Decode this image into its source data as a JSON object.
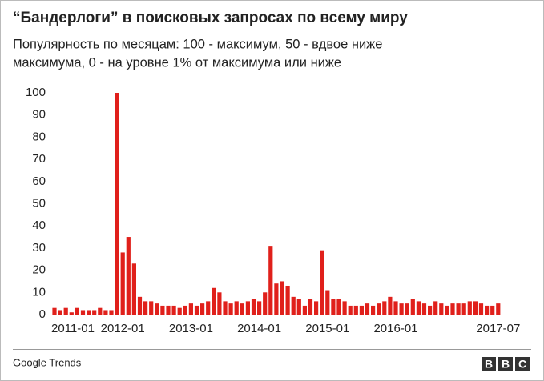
{
  "chart_data": {
    "type": "bar",
    "title": "“Бандерлоги” в поисковых запросах по всему миру",
    "subtitle": [
      "Популярность по месяцам: 100 - максимум, 50 - вдвое ниже",
      "максимума, 0 - на уровне 1% от максимума или ниже"
    ],
    "categories": [
      "2011-01",
      null,
      null,
      null,
      null,
      null,
      null,
      null,
      null,
      null,
      null,
      null,
      "2012-01",
      null,
      null,
      null,
      null,
      null,
      null,
      null,
      null,
      null,
      null,
      null,
      "2013-01",
      null,
      null,
      null,
      null,
      null,
      null,
      null,
      null,
      null,
      null,
      null,
      "2014-01",
      null,
      null,
      null,
      null,
      null,
      null,
      null,
      null,
      null,
      null,
      null,
      "2015-01",
      null,
      null,
      null,
      null,
      null,
      null,
      null,
      null,
      null,
      null,
      null,
      "2016-01",
      null,
      null,
      null,
      null,
      null,
      null,
      null,
      null,
      null,
      null,
      null,
      null,
      null,
      null,
      null,
      null,
      null,
      "2017-07"
    ],
    "values": [
      3,
      2,
      3,
      1,
      3,
      2,
      2,
      2,
      3,
      2,
      2,
      100,
      28,
      35,
      23,
      8,
      6,
      6,
      5,
      4,
      4,
      4,
      3,
      4,
      5,
      4,
      5,
      6,
      12,
      10,
      6,
      5,
      6,
      5,
      6,
      7,
      6,
      10,
      31,
      14,
      15,
      13,
      8,
      7,
      4,
      7,
      6,
      29,
      11,
      7,
      7,
      6,
      4,
      4,
      4,
      5,
      4,
      5,
      6,
      8,
      6,
      5,
      5,
      7,
      6,
      5,
      4,
      6,
      5,
      4,
      5,
      5,
      5,
      6,
      6,
      5,
      4,
      4,
      5
    ],
    "color": "#e0201b",
    "ylim": [
      0,
      100
    ],
    "yticks": [
      0,
      10,
      20,
      30,
      40,
      50,
      60,
      70,
      80,
      90,
      100
    ],
    "grid": false,
    "source": "Google Trends",
    "brand": [
      "B",
      "B",
      "C"
    ]
  }
}
